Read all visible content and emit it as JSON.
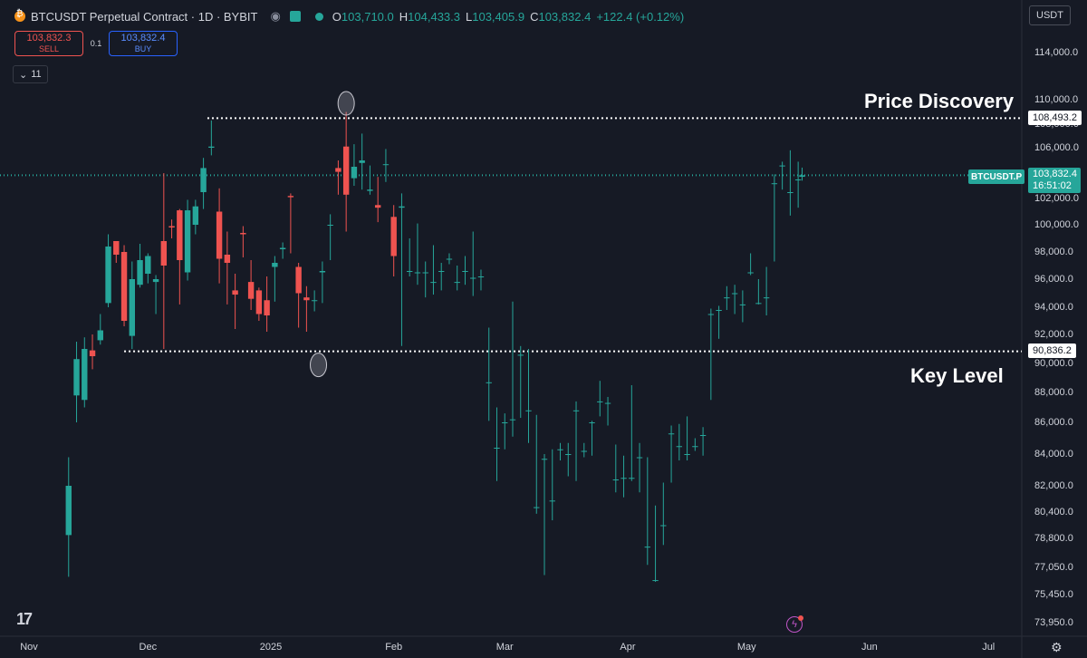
{
  "header": {
    "title": "BTCUSDT Perpetual Contract · 1D · BYBIT",
    "ohlc": [
      {
        "k": "O",
        "v": "103,710.0"
      },
      {
        "k": "H",
        "v": "104,433.3"
      },
      {
        "k": "L",
        "v": "103,405.9"
      },
      {
        "k": "C",
        "v": "103,832.4"
      }
    ],
    "change": "+122.4 (+0.12%)"
  },
  "trade": {
    "sell_price": "103,832.3",
    "sell_label": "SELL",
    "spread": "0.1",
    "buy_price": "103,832.4",
    "buy_label": "BUY"
  },
  "indicators_count": "11",
  "currency": "USDT",
  "price_tag": {
    "symbol": "BTCUSDT.P",
    "price": "103,832.4",
    "countdown": "16:51:02"
  },
  "level_labels": {
    "upper": "108,493.2",
    "lower": "90,836.2"
  },
  "annotations": {
    "upper": "Price Discovery",
    "lower": "Key Level"
  },
  "colors": {
    "up": "#26a69a",
    "down": "#ef5350",
    "background": "#161a25"
  },
  "icons": [
    "bitcoin-coin-icon",
    "eye-icon",
    "flag-icon",
    "chevron-down-icon",
    "tradingview-logo-icon",
    "lightning-icon",
    "gear-icon"
  ],
  "chart_data": {
    "type": "candlestick",
    "y_axis": {
      "ticks": [
        114000,
        110000,
        108000,
        106000,
        102000,
        100000,
        98000,
        96000,
        94000,
        92000,
        90000,
        88000,
        86000,
        84000,
        82000,
        80400,
        78800,
        77050,
        75450,
        73950
      ],
      "tick_labels": [
        "114,000.0",
        "110,000.0",
        "108,000.0",
        "106,000.0",
        "102,000.0",
        "100,000.0",
        "98,000.0",
        "96,000.0",
        "94,000.0",
        "92,000.0",
        "90,000.0",
        "88,000.0",
        "86,000.0",
        "84,000.0",
        "82,000.0",
        "80,400.0",
        "78,800.0",
        "77,050.0",
        "75,450.0",
        "73,950.0"
      ]
    },
    "x_axis": {
      "tick_labels": [
        "Nov",
        "Dec",
        "2025",
        "Feb",
        "Mar",
        "Apr",
        "May",
        "Jun",
        "Jul"
      ]
    },
    "key_levels": [
      108493.2,
      90836.2
    ],
    "current_price": 103832.4,
    "candles": [
      [
        "2024-11-11",
        79000,
        83800,
        76500,
        82000
      ],
      [
        "2024-11-13",
        87800,
        91500,
        86000,
        90300
      ],
      [
        "2024-11-15",
        87500,
        91800,
        87000,
        91000
      ],
      [
        "2024-11-17",
        90900,
        92000,
        89600,
        90500
      ],
      [
        "2024-11-19",
        91600,
        93500,
        91300,
        92300
      ],
      [
        "2024-11-21",
        94300,
        99300,
        94000,
        98400
      ],
      [
        "2024-11-23",
        98800,
        98700,
        97200,
        97800
      ],
      [
        "2024-11-25",
        98000,
        98500,
        92600,
        93000
      ],
      [
        "2024-11-27",
        91900,
        97300,
        91000,
        96000
      ],
      [
        "2024-11-29",
        95600,
        98600,
        95400,
        97400
      ],
      [
        "2024-12-01",
        96400,
        97900,
        95700,
        97700
      ],
      [
        "2024-12-03",
        95800,
        96300,
        93500,
        96000
      ],
      [
        "2024-12-05",
        98800,
        104000,
        91000,
        97000
      ],
      [
        "2024-12-07",
        99900,
        100400,
        99000,
        99800
      ],
      [
        "2024-12-09",
        101100,
        101200,
        94200,
        97400
      ],
      [
        "2024-12-11",
        96500,
        101900,
        95900,
        101100
      ],
      [
        "2024-12-13",
        100000,
        101900,
        99300,
        101400
      ],
      [
        "2024-12-15",
        102500,
        105200,
        101200,
        104400
      ],
      [
        "2024-12-17",
        106000,
        108300,
        105400,
        106100
      ],
      [
        "2024-12-19",
        101000,
        102800,
        95700,
        97500
      ],
      [
        "2024-12-21",
        97800,
        99500,
        94200,
        97200
      ],
      [
        "2024-12-23",
        95200,
        96400,
        92400,
        94900
      ],
      [
        "2024-12-25",
        99400,
        99900,
        97600,
        99300
      ],
      [
        "2024-12-27",
        95800,
        97400,
        93800,
        94600
      ],
      [
        "2024-12-29",
        95200,
        95400,
        93000,
        93500
      ],
      [
        "2024-12-31",
        94500,
        96200,
        92200,
        93400
      ],
      [
        "2025-01-02",
        96900,
        97700,
        94400,
        97200
      ],
      [
        "2025-01-04",
        98200,
        98700,
        97500,
        98300
      ],
      [
        "2025-01-06",
        102200,
        102400,
        97900,
        102100
      ],
      [
        "2025-01-08",
        96900,
        97200,
        92500,
        95000
      ],
      [
        "2025-01-10",
        94700,
        95500,
        92200,
        94500
      ],
      [
        "2025-01-12",
        94500,
        95200,
        93700,
        94500
      ],
      [
        "2025-01-14",
        96500,
        97300,
        94300,
        96600
      ],
      [
        "2025-01-16",
        100000,
        100800,
        97400,
        100000
      ],
      [
        "2025-01-18",
        104400,
        105000,
        102300,
        104100
      ],
      [
        "2025-01-20",
        106100,
        109000,
        99500,
        102300
      ],
      [
        "2025-01-22",
        103600,
        106300,
        103000,
        104500
      ],
      [
        "2025-01-24",
        104800,
        107200,
        102700,
        105000
      ],
      [
        "2025-01-26",
        102600,
        104600,
        102300,
        102700
      ],
      [
        "2025-01-28",
        101500,
        103700,
        100200,
        101300
      ],
      [
        "2025-01-30",
        104700,
        105900,
        103300,
        104700
      ],
      [
        "2025-02-01",
        100600,
        101500,
        96200,
        97700
      ],
      [
        "2025-02-03",
        101300,
        102400,
        91200,
        101400
      ],
      [
        "2025-02-05",
        96600,
        99000,
        96200,
        96600
      ],
      [
        "2025-02-07",
        96500,
        100100,
        95600,
        96500
      ],
      [
        "2025-02-09",
        96500,
        97300,
        94700,
        96500
      ],
      [
        "2025-02-11",
        95800,
        98500,
        94900,
        95800
      ],
      [
        "2025-02-13",
        96600,
        97200,
        95200,
        96600
      ],
      [
        "2025-02-15",
        97500,
        97900,
        97100,
        97500
      ],
      [
        "2025-02-17",
        95800,
        97000,
        95200,
        95800
      ],
      [
        "2025-02-19",
        96600,
        97700,
        95600,
        96600
      ],
      [
        "2025-02-21",
        96100,
        99500,
        94800,
        96100
      ],
      [
        "2025-02-23",
        96200,
        96700,
        95200,
        96200
      ],
      [
        "2025-02-25",
        88700,
        92500,
        86100,
        88700
      ],
      [
        "2025-02-27",
        84400,
        87000,
        82300,
        84400
      ],
      [
        "2025-03-01",
        86000,
        86600,
        84300,
        86000
      ],
      [
        "2025-03-03",
        86200,
        94400,
        85100,
        86200
      ],
      [
        "2025-03-05",
        90600,
        91200,
        86300,
        90600
      ],
      [
        "2025-03-07",
        86800,
        91000,
        84700,
        86800
      ],
      [
        "2025-03-09",
        80700,
        86500,
        80300,
        80700
      ],
      [
        "2025-03-11",
        83700,
        84000,
        76600,
        83700
      ],
      [
        "2025-03-13",
        81100,
        84300,
        79900,
        81100
      ],
      [
        "2025-03-15",
        84300,
        84700,
        83600,
        84300
      ],
      [
        "2025-03-17",
        84000,
        84700,
        82600,
        84000
      ],
      [
        "2025-03-19",
        86800,
        87400,
        82300,
        86800
      ],
      [
        "2025-03-21",
        84200,
        84700,
        83800,
        84200
      ],
      [
        "2025-03-23",
        86000,
        86100,
        83900,
        86000
      ],
      [
        "2025-03-25",
        87400,
        88800,
        86400,
        87400
      ],
      [
        "2025-03-27",
        87300,
        87700,
        85800,
        87300
      ],
      [
        "2025-03-29",
        82400,
        84600,
        81600,
        82400
      ],
      [
        "2025-03-31",
        82500,
        83900,
        81300,
        82500
      ],
      [
        "2025-04-02",
        82500,
        88500,
        82300,
        82500
      ],
      [
        "2025-04-04",
        83800,
        84700,
        81600,
        83800
      ],
      [
        "2025-04-06",
        78300,
        83800,
        77200,
        78300
      ],
      [
        "2025-04-08",
        76300,
        80800,
        76200,
        76300
      ],
      [
        "2025-04-10",
        79600,
        82200,
        78400,
        79600
      ],
      [
        "2025-04-12",
        85300,
        85800,
        82200,
        85300
      ],
      [
        "2025-04-14",
        84500,
        85900,
        83600,
        84500
      ],
      [
        "2025-04-16",
        84000,
        86400,
        83600,
        84000
      ],
      [
        "2025-04-18",
        84500,
        85000,
        84200,
        84500
      ],
      [
        "2025-04-20",
        85200,
        85700,
        83900,
        85200
      ],
      [
        "2025-04-22",
        93500,
        93900,
        87500,
        93500
      ],
      [
        "2025-04-24",
        93800,
        94100,
        91700,
        93800
      ],
      [
        "2025-04-26",
        94700,
        95500,
        93800,
        94700
      ],
      [
        "2025-04-28",
        95000,
        95600,
        93500,
        95000
      ],
      [
        "2025-04-30",
        94200,
        95200,
        92900,
        94200
      ],
      [
        "2025-05-02",
        96500,
        97900,
        96300,
        96500
      ],
      [
        "2025-05-04",
        94300,
        96000,
        94200,
        94300
      ],
      [
        "2025-05-06",
        94700,
        96900,
        93400,
        94700
      ],
      [
        "2025-05-08",
        103200,
        103900,
        97300,
        103200
      ],
      [
        "2025-05-10",
        104600,
        104900,
        102700,
        104600
      ],
      [
        "2025-05-12",
        102500,
        105800,
        100700,
        102500
      ],
      [
        "2025-05-14",
        103500,
        104900,
        101300,
        103500
      ],
      [
        "2025-05-15",
        103710,
        104433.3,
        103405.9,
        103832.4
      ]
    ]
  }
}
